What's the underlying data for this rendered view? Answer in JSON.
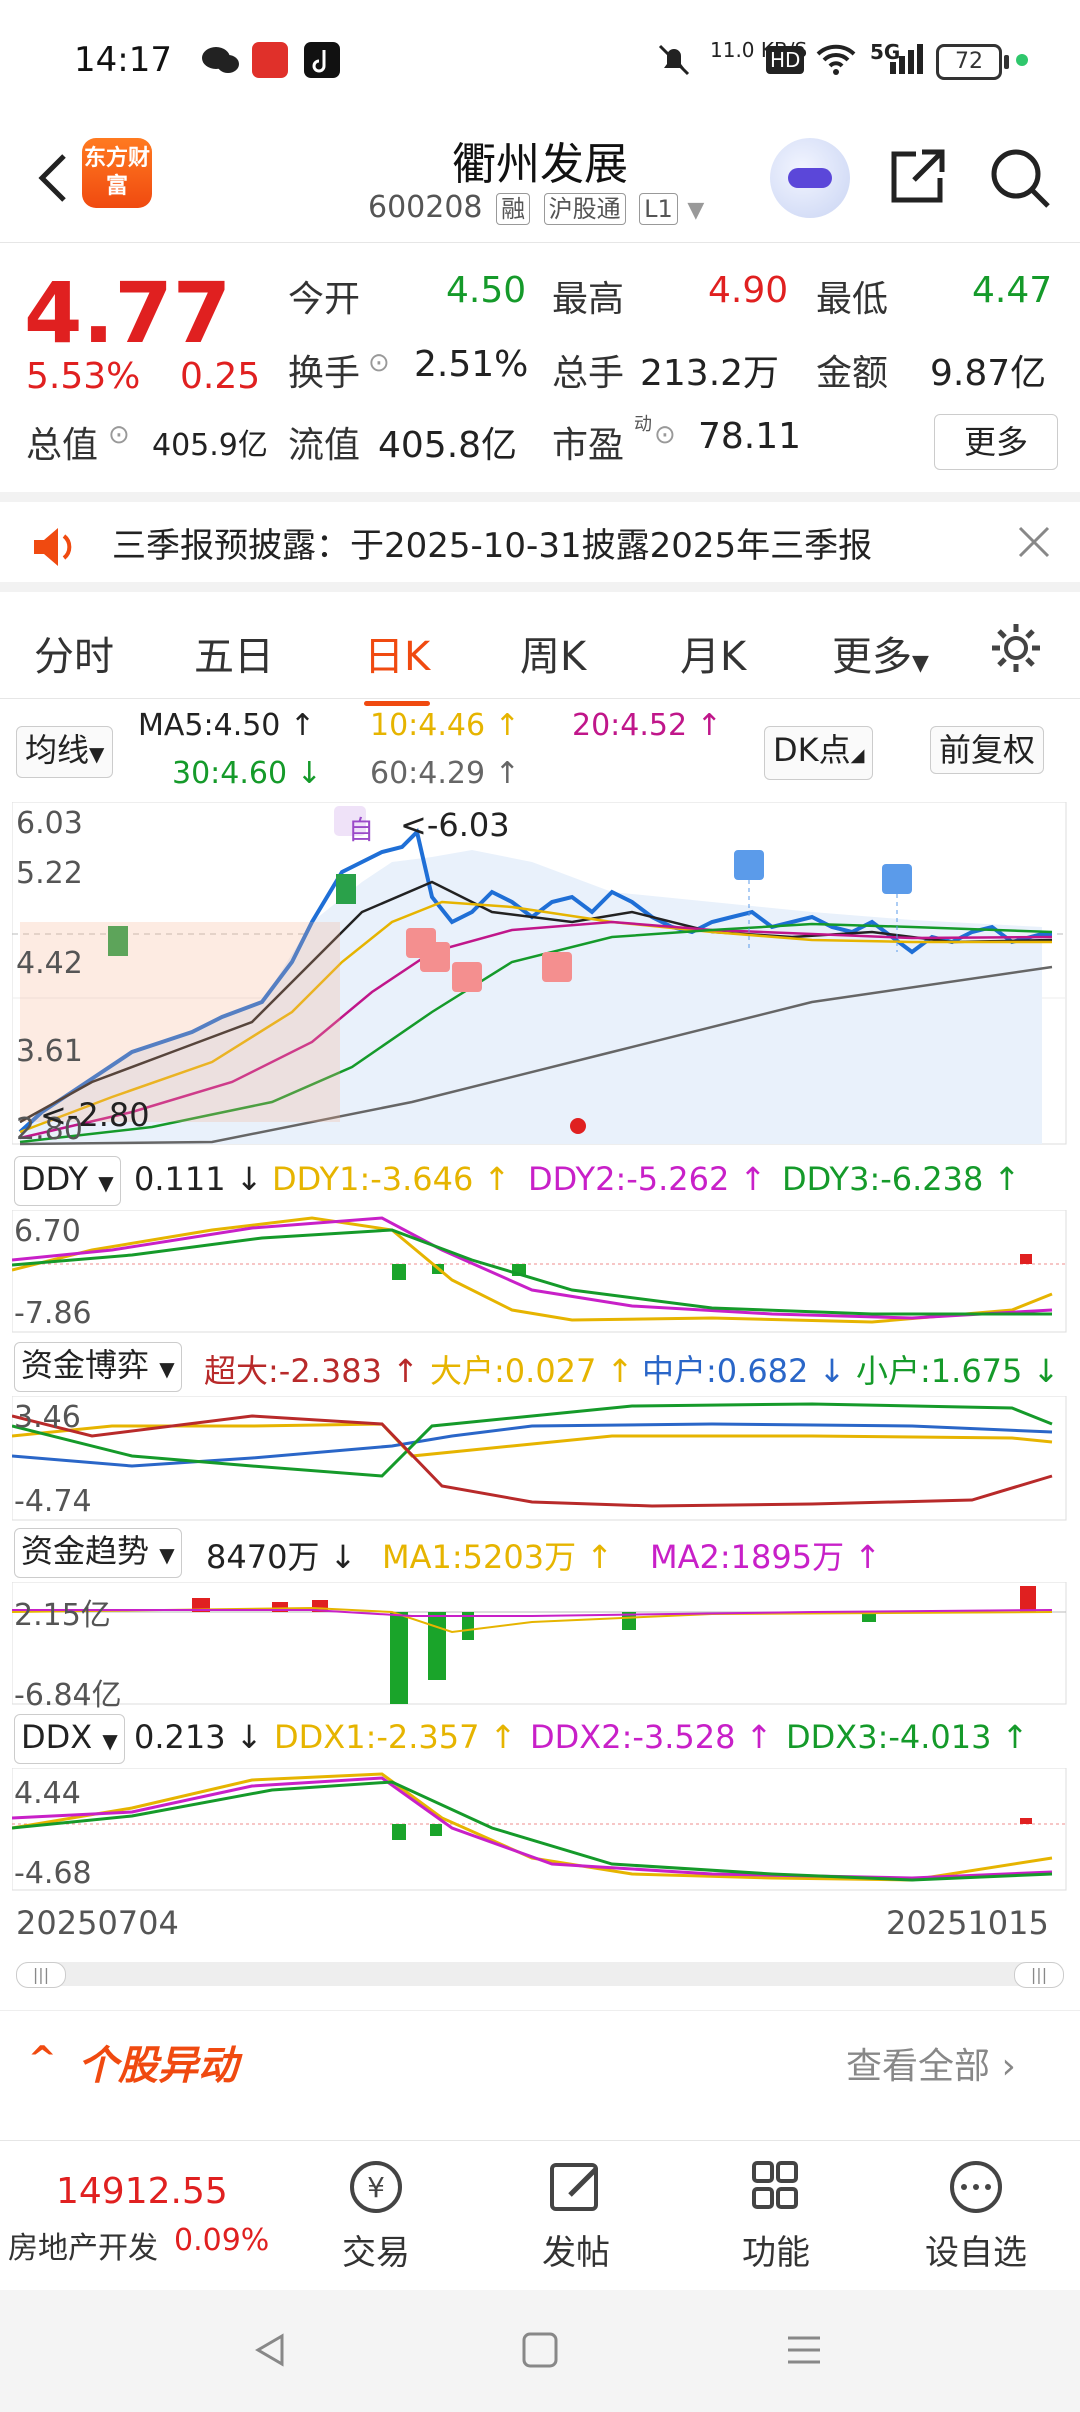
{
  "status_bar": {
    "time": "14:17",
    "net_speed": "11.0 KB/S",
    "hd": "HD",
    "signal": "5G",
    "battery": "72"
  },
  "header": {
    "logo": "东方财富",
    "title": "衢州发展",
    "code": "600208",
    "tags": [
      "融",
      "沪股通",
      "L1"
    ]
  },
  "quote": {
    "price": "4.77",
    "change_pct": "5.53%",
    "change": "0.25",
    "open_label": "今开",
    "open": "4.50",
    "high_label": "最高",
    "high": "4.90",
    "low_label": "最低",
    "low": "4.47",
    "turnover_label": "换手",
    "turnover": "2.51%",
    "volume_label": "总手",
    "volume": "213.2万",
    "amount_label": "金额",
    "amount": "9.87亿",
    "mcap_label": "总值",
    "mcap": "405.9亿",
    "float_label": "流值",
    "float": "405.8亿",
    "pe_label": "市盈",
    "pe_sup": "动",
    "pe": "78.11",
    "more": "更多"
  },
  "notice": {
    "text": "三季报预披露：于2025-10-31披露2025年三季报"
  },
  "tabs": [
    "分时",
    "五日",
    "日K",
    "周K",
    "月K",
    "更多"
  ],
  "active_tab": "日K",
  "ma_row": {
    "chip": "均线",
    "ma5": "MA5:4.50 ↑",
    "ma10": "10:4.46 ↑",
    "ma20": "20:4.52 ↑",
    "ma30": "30:4.60 ↓",
    "ma60": "60:4.29 ↑",
    "dk": "DK点",
    "fq": "前复权"
  },
  "kline": {
    "y_ticks": [
      "6.03",
      "5.22",
      "4.42",
      "3.61",
      "2.80"
    ],
    "max_label": "<-6.03",
    "min_label": "<-2.80",
    "self_tag": "自"
  },
  "ddy": {
    "name": "DDY",
    "value": "0.111 ↓",
    "l1": "DDY1:-3.646 ↑",
    "l2": "DDY2:-5.262 ↑",
    "l3": "DDY3:-6.238 ↑",
    "top": "6.70",
    "bottom": "-7.86"
  },
  "zjbo": {
    "name": "资金博弈",
    "l1": "超大:-2.383 ↑",
    "l2": "大户:0.027 ↑",
    "l3": "中户:0.682 ↓",
    "l4": "小户:1.675 ↓",
    "top": "3.46",
    "bottom": "-4.74"
  },
  "zjqs": {
    "name": "资金趋势",
    "value": "8470万 ↓",
    "l1": "MA1:5203万 ↑",
    "l2": "MA2:1895万 ↑",
    "top": "2.15亿",
    "bottom": "-6.84亿"
  },
  "ddx": {
    "name": "DDX",
    "value": "0.213 ↓",
    "l1": "DDX1:-2.357 ↑",
    "l2": "DDX2:-3.528 ↑",
    "l3": "DDX3:-4.013 ↑",
    "top": "4.44",
    "bottom": "-4.68"
  },
  "dates": {
    "start": "20250704",
    "end": "20251015"
  },
  "section": {
    "title": "个股异动",
    "link": "查看全部"
  },
  "bottom": {
    "index_value": "14912.55",
    "index_name": "房地产开发",
    "index_pct": "0.09%",
    "items": [
      "交易",
      "发帖",
      "功能",
      "设自选"
    ]
  }
}
